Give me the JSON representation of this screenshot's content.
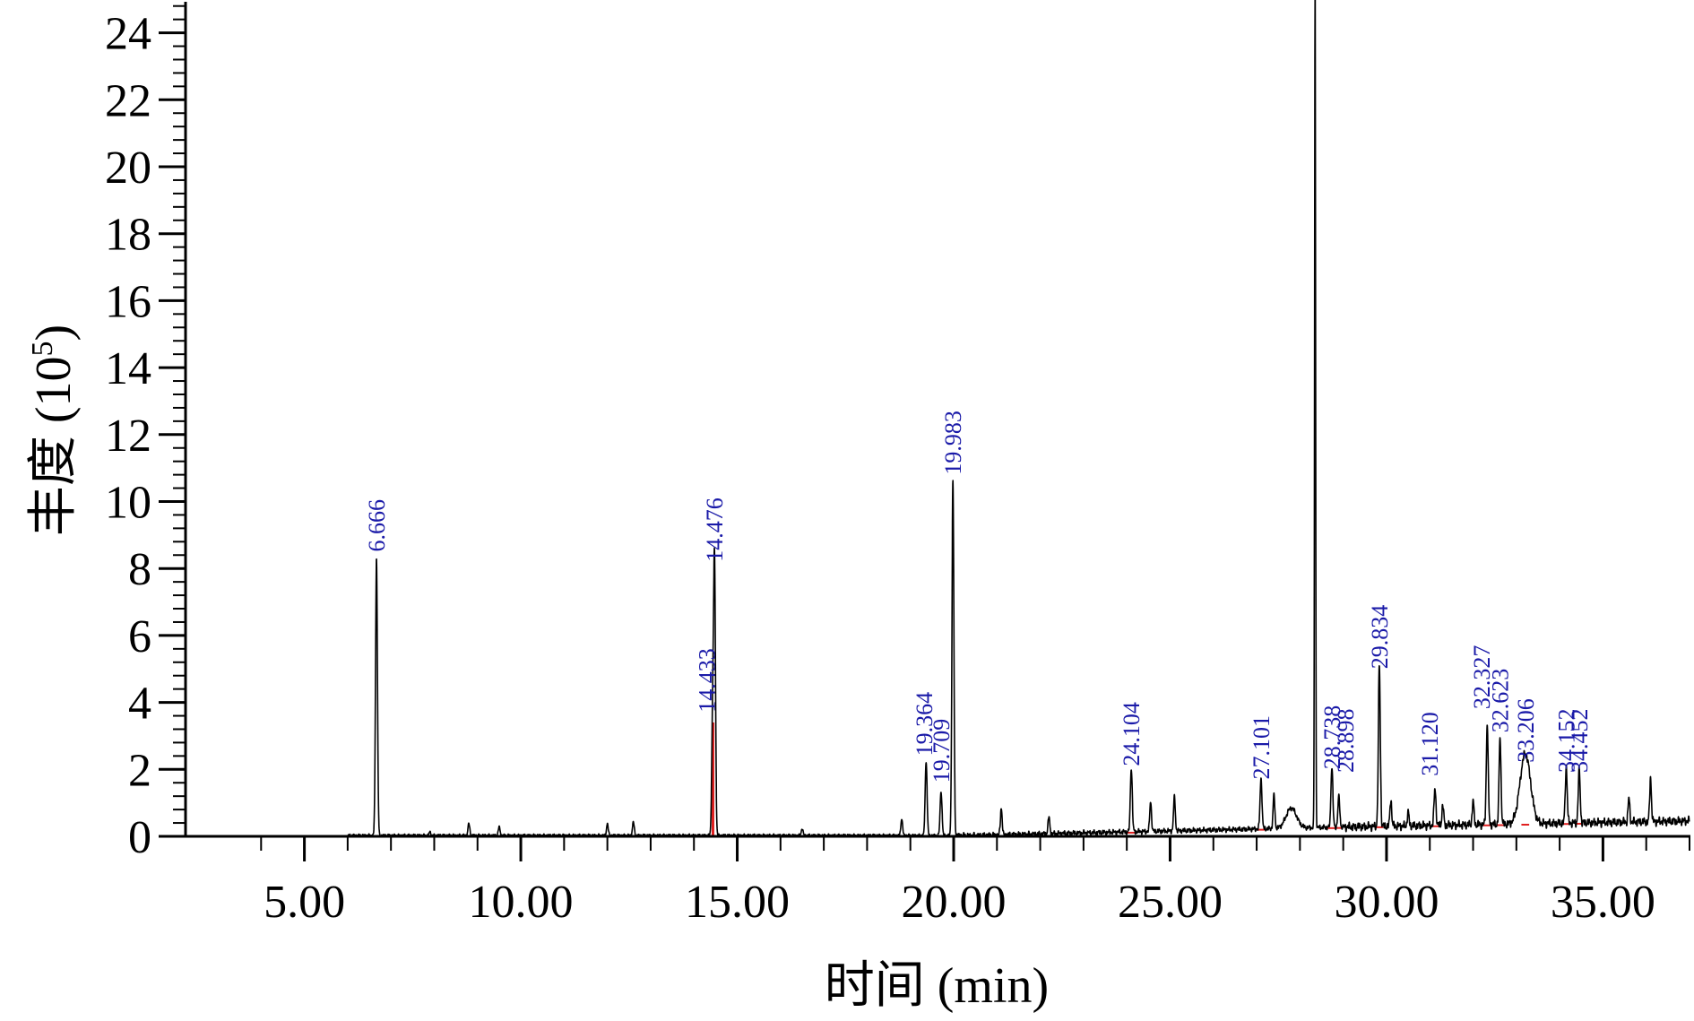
{
  "chart_data": {
    "type": "line",
    "title": "",
    "xlabel": "时间 (min)",
    "ylabel_main": "丰度 (10",
    "ylabel_sup": "5",
    "ylabel_close": ")",
    "xlim": [
      3.0,
      37.0
    ],
    "ylim": [
      0,
      25
    ],
    "x_ticks": [
      {
        "value": 5,
        "label": "5.00"
      },
      {
        "value": 10,
        "label": "10.00"
      },
      {
        "value": 15,
        "label": "15.00"
      },
      {
        "value": 20,
        "label": "20.00"
      },
      {
        "value": 25,
        "label": "25.00"
      },
      {
        "value": 30,
        "label": "30.00"
      },
      {
        "value": 35,
        "label": "35.00"
      }
    ],
    "y_ticks": [
      {
        "value": 0,
        "label": "0"
      },
      {
        "value": 2,
        "label": "2"
      },
      {
        "value": 4,
        "label": "4"
      },
      {
        "value": 6,
        "label": "6"
      },
      {
        "value": 8,
        "label": "8"
      },
      {
        "value": 10,
        "label": "10"
      },
      {
        "value": 12,
        "label": "12"
      },
      {
        "value": 14,
        "label": "14"
      },
      {
        "value": 16,
        "label": "16"
      },
      {
        "value": 18,
        "label": "18"
      },
      {
        "value": 20,
        "label": "20"
      },
      {
        "value": 22,
        "label": "22"
      },
      {
        "value": 24,
        "label": "24"
      }
    ],
    "grid": false,
    "trace_color": "#000000",
    "baseline_color": "#e02020",
    "label_color": "#1a1aa8",
    "labeled_peaks": [
      {
        "rt": 6.666,
        "label": "6.666",
        "height": 8.3
      },
      {
        "rt": 14.433,
        "label": "14.433",
        "height": 3.4
      },
      {
        "rt": 14.476,
        "label": "14.476",
        "height": 8.0
      },
      {
        "rt": 19.364,
        "label": "19.364",
        "height": 2.2
      },
      {
        "rt": 19.709,
        "label": "19.709",
        "height": 1.3
      },
      {
        "rt": 19.983,
        "label": "19.983",
        "height": 10.6
      },
      {
        "rt": 24.104,
        "label": "24.104",
        "height": 1.9
      },
      {
        "rt": 27.101,
        "label": "27.101",
        "height": 1.5
      },
      {
        "rt": 28.738,
        "label": "28.738",
        "height": 1.8
      },
      {
        "rt": 28.898,
        "label": "28.898",
        "height": 0.9
      },
      {
        "rt": 29.834,
        "label": "29.834",
        "height": 4.8
      },
      {
        "rt": 31.12,
        "label": "31.120",
        "height": 1.1
      },
      {
        "rt": 32.327,
        "label": "32.327",
        "height": 3.0
      },
      {
        "rt": 32.623,
        "label": "32.623",
        "height": 2.6
      },
      {
        "rt": 33.206,
        "label": "33.206",
        "height": 2.1
      },
      {
        "rt": 34.152,
        "label": "34.152",
        "height": 1.7
      },
      {
        "rt": 34.452,
        "label": "34.452",
        "height": 1.6
      }
    ],
    "offscale_peak": {
      "rt": 28.35,
      "height": 26
    },
    "minor_peaks": [
      {
        "rt": 7.9,
        "height": 0.1
      },
      {
        "rt": 8.8,
        "height": 0.35
      },
      {
        "rt": 9.5,
        "height": 0.25
      },
      {
        "rt": 12.0,
        "height": 0.35
      },
      {
        "rt": 12.6,
        "height": 0.4
      },
      {
        "rt": 16.5,
        "height": 0.2
      },
      {
        "rt": 18.8,
        "height": 0.5
      },
      {
        "rt": 21.1,
        "height": 0.8
      },
      {
        "rt": 22.2,
        "height": 0.5
      },
      {
        "rt": 24.55,
        "height": 0.9
      },
      {
        "rt": 25.1,
        "height": 1.0
      },
      {
        "rt": 27.4,
        "height": 1.0
      },
      {
        "rt": 27.8,
        "height": 0.6
      },
      {
        "rt": 30.1,
        "height": 0.8
      },
      {
        "rt": 30.5,
        "height": 0.4
      },
      {
        "rt": 31.3,
        "height": 0.6
      },
      {
        "rt": 32.0,
        "height": 0.7
      },
      {
        "rt": 35.6,
        "height": 0.7
      },
      {
        "rt": 36.1,
        "height": 1.3
      }
    ]
  }
}
